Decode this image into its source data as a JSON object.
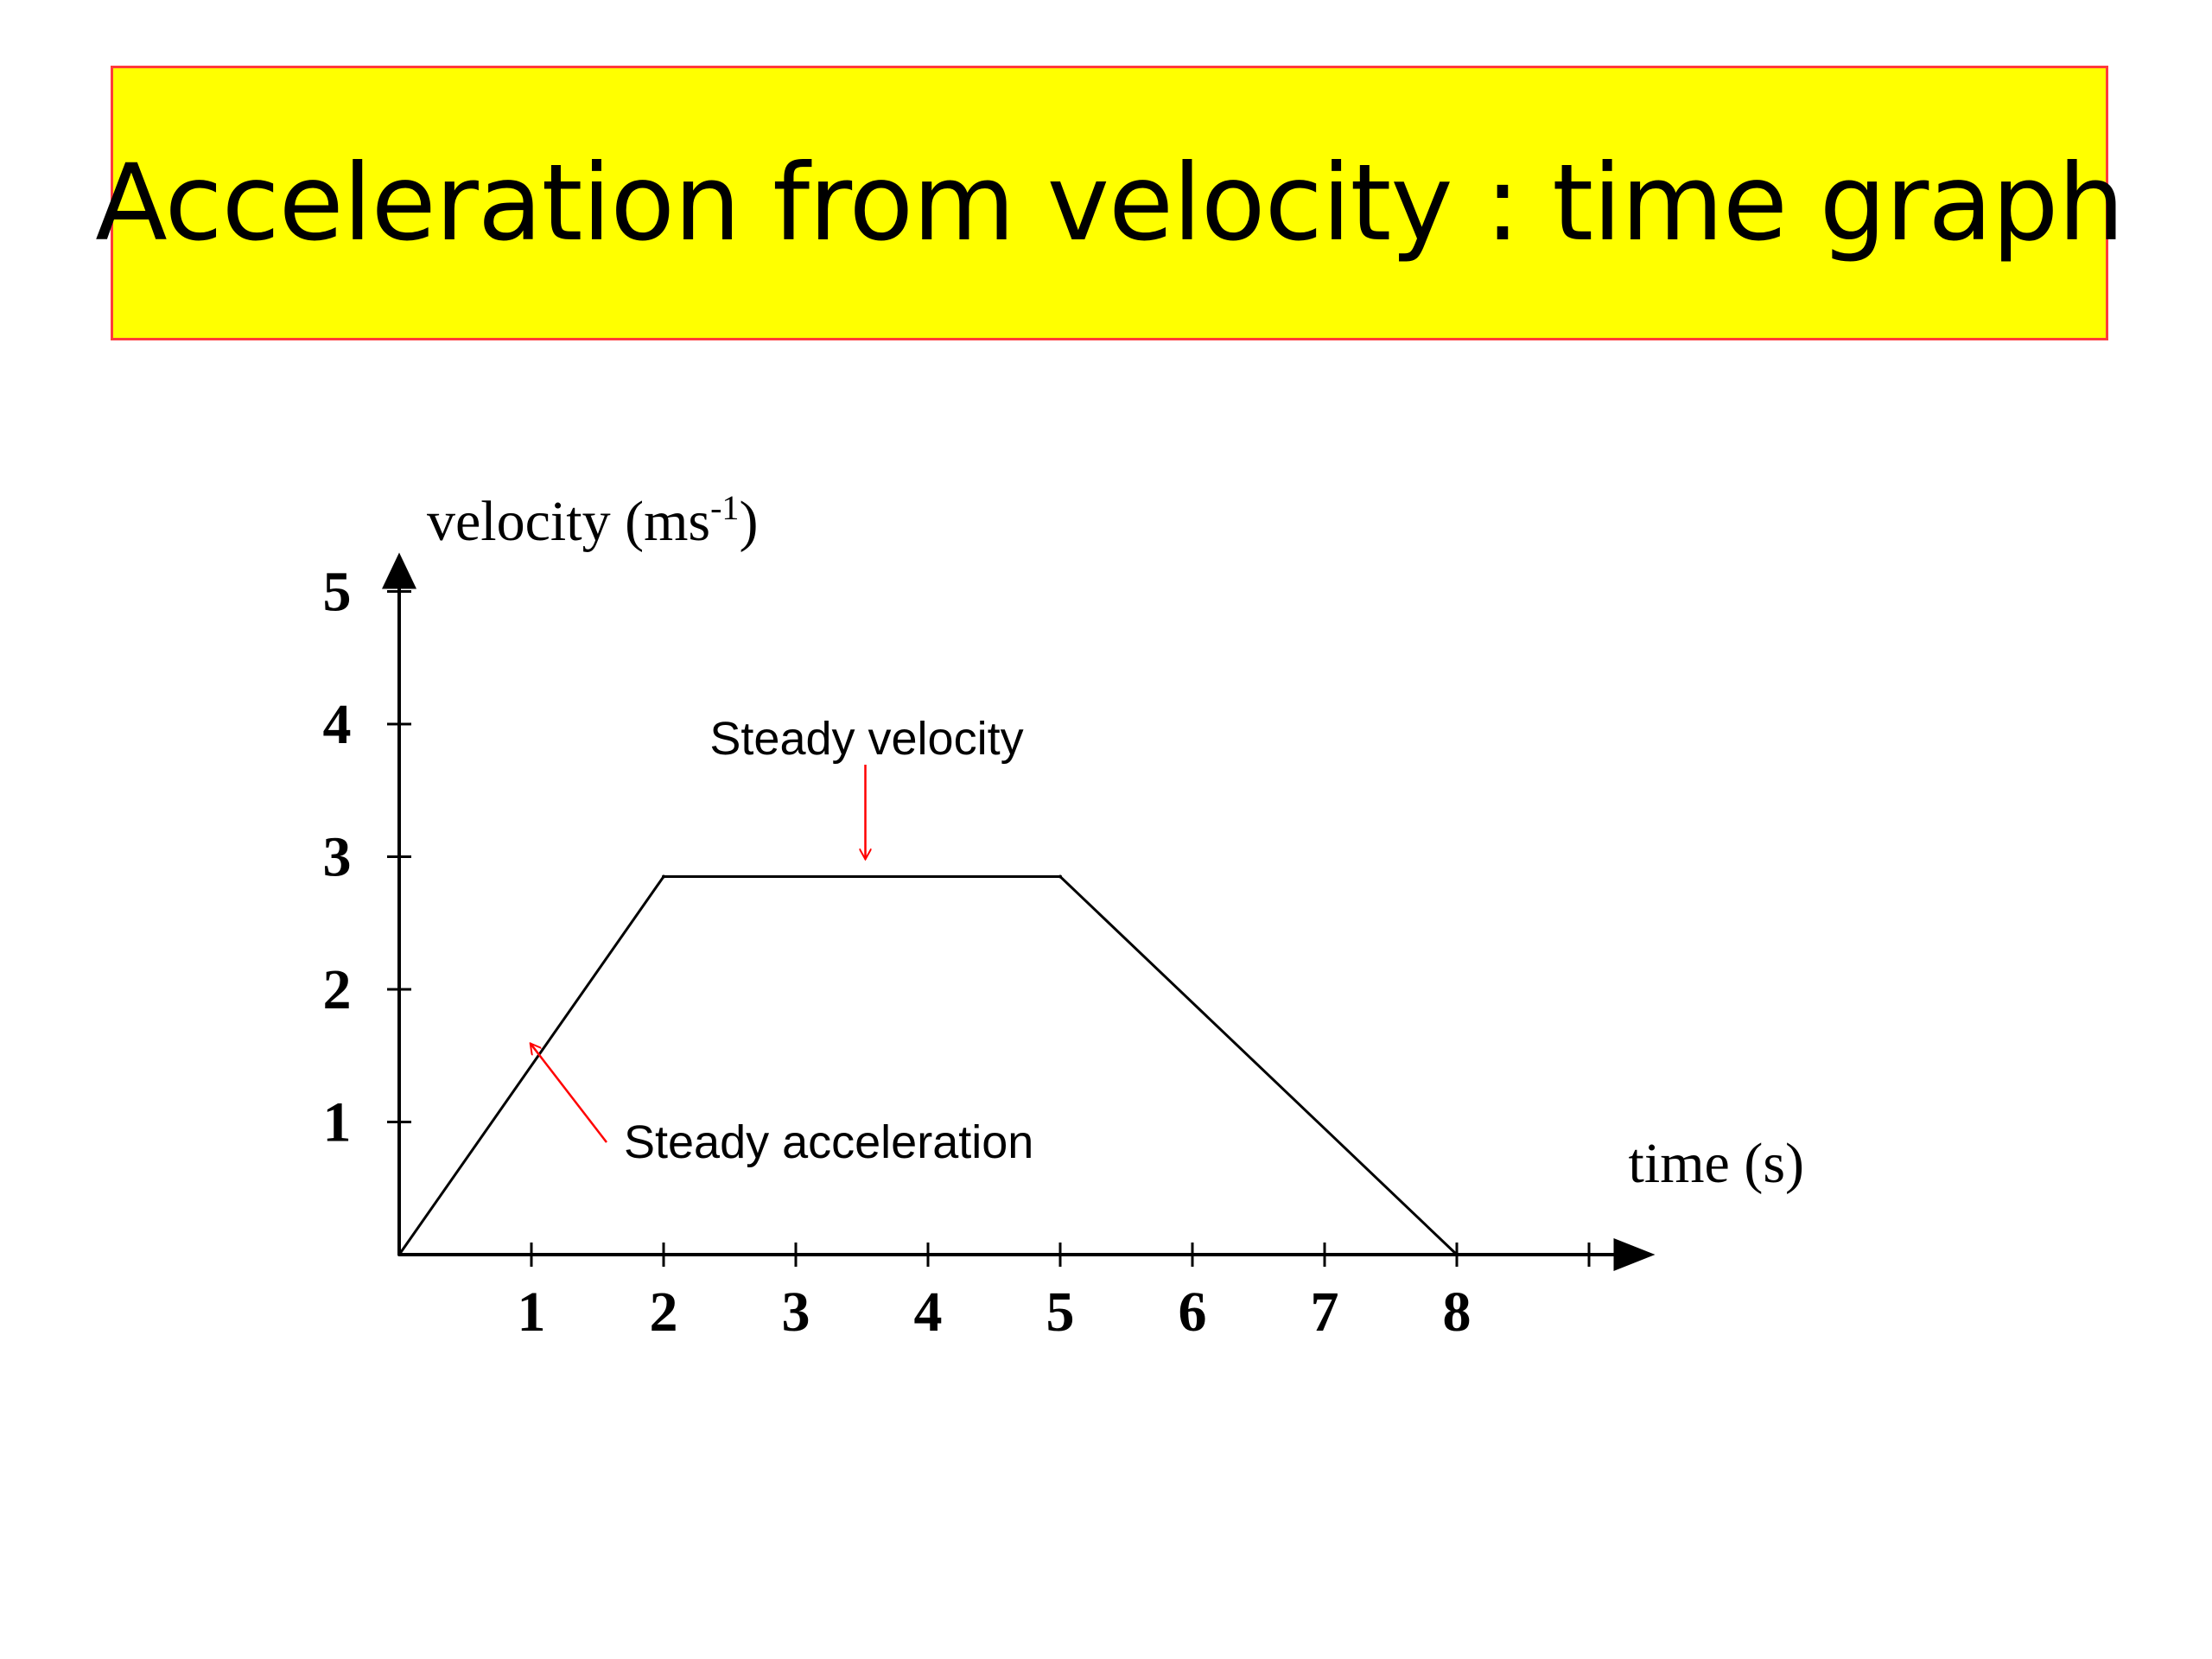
{
  "slide": {
    "title": "Acceleration from velocity : time graph",
    "colors": {
      "title_background": "#ffff00",
      "title_border": "#ff3b3b",
      "arrow": "#ff0000",
      "line": "#000000"
    }
  },
  "chart_data": {
    "type": "line",
    "title": "",
    "xlabel": "time (s)",
    "ylabel_main": "velocity (ms",
    "ylabel_sup": "-1",
    "ylabel_close": ")",
    "xlim": [
      0,
      9.5
    ],
    "ylim": [
      0,
      5
    ],
    "x_ticks": [
      1,
      2,
      3,
      4,
      5,
      6,
      7,
      8,
      9
    ],
    "x_tick_labels": [
      "1",
      "2",
      "3",
      "4",
      "5",
      "6",
      "7",
      "8",
      ""
    ],
    "y_ticks": [
      1,
      2,
      3,
      4,
      5
    ],
    "y_tick_labels": [
      "1",
      "2",
      "3",
      "4",
      "5"
    ],
    "grid": false,
    "series": [
      {
        "x": [
          0,
          2,
          5,
          8
        ],
        "y": [
          0,
          2.85,
          2.85,
          0
        ]
      }
    ],
    "annotations": [
      {
        "text": "Steady velocity",
        "color": "#ff0000",
        "target_x": 3.5,
        "target_y": 2.85
      },
      {
        "text": "Steady acceleration",
        "color": "#ff0000",
        "target_x": 0.9,
        "target_y": 1.3
      }
    ]
  }
}
